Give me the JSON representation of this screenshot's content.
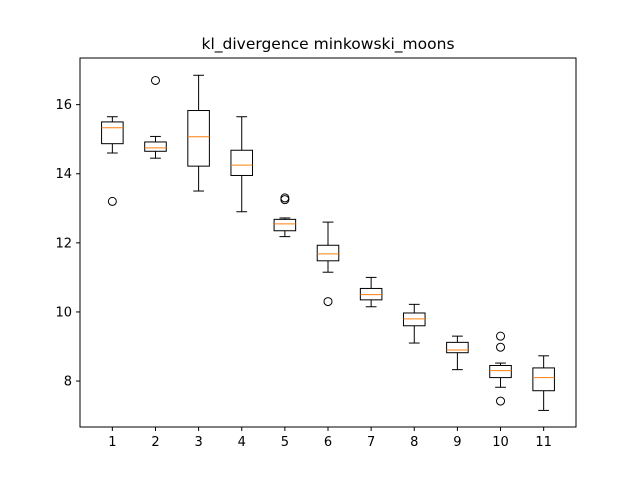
{
  "chart_data": {
    "type": "boxplot",
    "title": "kl_divergence minkowski_moons",
    "xlabel": "",
    "ylabel": "",
    "categories": [
      "1",
      "2",
      "3",
      "4",
      "5",
      "6",
      "7",
      "8",
      "9",
      "10",
      "11"
    ],
    "y_ticks": [
      8,
      10,
      12,
      14,
      16
    ],
    "ylim": [
      6.67,
      17.35
    ],
    "grid": false,
    "colors": {
      "box": "#000000",
      "median": "#ff7f0e",
      "flier": "#000000"
    },
    "boxes": [
      {
        "category": "1",
        "whisker_low": 14.6,
        "q1": 14.87,
        "median": 15.33,
        "q3": 15.5,
        "whisker_high": 15.65,
        "fliers": [
          13.2
        ]
      },
      {
        "category": "2",
        "whisker_low": 14.45,
        "q1": 14.65,
        "median": 14.75,
        "q3": 14.92,
        "whisker_high": 15.08,
        "fliers": [
          16.7
        ]
      },
      {
        "category": "3",
        "whisker_low": 13.5,
        "q1": 14.22,
        "median": 15.07,
        "q3": 15.83,
        "whisker_high": 16.85,
        "fliers": []
      },
      {
        "category": "4",
        "whisker_low": 12.9,
        "q1": 13.95,
        "median": 14.25,
        "q3": 14.68,
        "whisker_high": 15.65,
        "fliers": []
      },
      {
        "category": "5",
        "whisker_low": 12.18,
        "q1": 12.35,
        "median": 12.55,
        "q3": 12.68,
        "whisker_high": 12.72,
        "fliers": [
          13.25,
          13.3
        ]
      },
      {
        "category": "6",
        "whisker_low": 11.15,
        "q1": 11.48,
        "median": 11.68,
        "q3": 11.93,
        "whisker_high": 12.6,
        "fliers": [
          10.3
        ]
      },
      {
        "category": "7",
        "whisker_low": 10.15,
        "q1": 10.35,
        "median": 10.5,
        "q3": 10.68,
        "whisker_high": 11.0,
        "fliers": []
      },
      {
        "category": "8",
        "whisker_low": 9.1,
        "q1": 9.6,
        "median": 9.8,
        "q3": 9.97,
        "whisker_high": 10.22,
        "fliers": []
      },
      {
        "category": "9",
        "whisker_low": 8.33,
        "q1": 8.82,
        "median": 8.9,
        "q3": 9.12,
        "whisker_high": 9.3,
        "fliers": []
      },
      {
        "category": "10",
        "whisker_low": 7.82,
        "q1": 8.1,
        "median": 8.3,
        "q3": 8.45,
        "whisker_high": 8.52,
        "fliers": [
          9.3,
          8.98,
          7.42
        ]
      },
      {
        "category": "11",
        "whisker_low": 7.15,
        "q1": 7.72,
        "median": 8.1,
        "q3": 8.38,
        "whisker_high": 8.73,
        "fliers": []
      }
    ]
  }
}
